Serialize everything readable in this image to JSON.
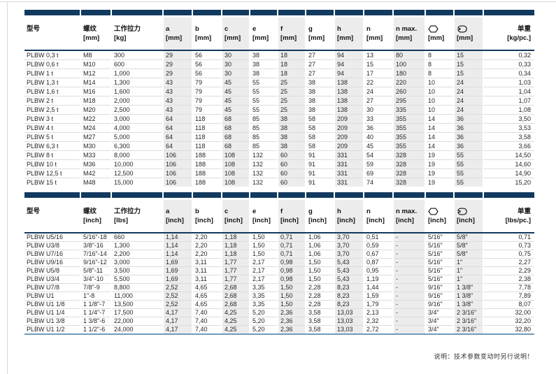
{
  "note": "说明：技术参数变动时另行说明！",
  "colors": {
    "header_bar_navy": "#12395f",
    "column_stripe": "#ececec",
    "table_bottom_rule_blue": "#6f9cbe"
  },
  "tables": [
    {
      "name": "metric",
      "columns": [
        {
          "key": "model",
          "label": "型号",
          "unit": ""
        },
        {
          "key": "thread",
          "label": "螺纹",
          "unit": "[mm]"
        },
        {
          "key": "working-load",
          "label": "工作拉力",
          "unit": "[kg]"
        },
        {
          "key": "a",
          "label": "a",
          "unit": "[mm]"
        },
        {
          "key": "b",
          "label": "b",
          "unit": "[mm]"
        },
        {
          "key": "c",
          "label": "c",
          "unit": "[mm]"
        },
        {
          "key": "e",
          "label": "e",
          "unit": "[mm]"
        },
        {
          "key": "f",
          "label": "f",
          "unit": "[mm]"
        },
        {
          "key": "g",
          "label": "g",
          "unit": "[mm]"
        },
        {
          "key": "h",
          "label": "h",
          "unit": "[mm]"
        },
        {
          "key": "n",
          "label": "n",
          "unit": "[mm]"
        },
        {
          "key": "n-max",
          "label": "n max.",
          "unit": "[mm]"
        },
        {
          "key": "hex-size",
          "icon": "hexagon-icon",
          "unit": "[mm]"
        },
        {
          "key": "wrench-size",
          "icon": "wrench-icon",
          "unit": "[mm]"
        },
        {
          "key": "unit-weight",
          "label": "单重",
          "unit": "[kg/pc.]"
        }
      ],
      "rows": [
        [
          "PLBW 0,3 t",
          "M8",
          "300",
          "29",
          "56",
          "30",
          "38",
          "18",
          "27",
          "94",
          "13",
          "80",
          "8",
          "15",
          "0,32"
        ],
        [
          "PLBW 0,6 t",
          "M10",
          "600",
          "29",
          "56",
          "30",
          "38",
          "18",
          "27",
          "94",
          "15",
          "100",
          "8",
          "15",
          "0,33"
        ],
        [
          "PLBW 1 t",
          "M12",
          "1,000",
          "29",
          "56",
          "30",
          "38",
          "18",
          "27",
          "94",
          "17",
          "180",
          "8",
          "15",
          "0,34"
        ],
        [
          "PLBW 1,3 t",
          "M14",
          "1,300",
          "43",
          "79",
          "45",
          "55",
          "25",
          "38",
          "138",
          "22",
          "220",
          "10",
          "24",
          "1,03"
        ],
        [
          "PLBW 1,6 t",
          "M16",
          "1,600",
          "43",
          "79",
          "45",
          "55",
          "25",
          "38",
          "138",
          "24",
          "260",
          "10",
          "24",
          "1,04"
        ],
        [
          "PLBW 2 t",
          "M18",
          "2,000",
          "43",
          "79",
          "45",
          "55",
          "25",
          "38",
          "138",
          "27",
          "295",
          "10",
          "24",
          "1,07"
        ],
        [
          "PLBW 2,5 t",
          "M20",
          "2,500",
          "43",
          "79",
          "45",
          "55",
          "25",
          "38",
          "138",
          "30",
          "335",
          "10",
          "24",
          "1,08"
        ],
        [
          "PLBW 3 t",
          "M22",
          "3,000",
          "64",
          "118",
          "68",
          "85",
          "38",
          "58",
          "209",
          "33",
          "355",
          "14",
          "36",
          "3,50"
        ],
        [
          "PLBW 4 t",
          "M24",
          "4,000",
          "64",
          "118",
          "68",
          "85",
          "38",
          "58",
          "209",
          "36",
          "355",
          "14",
          "36",
          "3,53"
        ],
        [
          "PLBW 5 t",
          "M27",
          "5,000",
          "64",
          "118",
          "68",
          "85",
          "38",
          "58",
          "209",
          "40",
          "355",
          "14",
          "36",
          "3,58"
        ],
        [
          "PLBW 6,3 t",
          "M30",
          "6,300",
          "64",
          "118",
          "68",
          "85",
          "38",
          "58",
          "209",
          "45",
          "355",
          "14",
          "36",
          "3,66"
        ],
        [
          "PLBW 8 t",
          "M33",
          "8,000",
          "106",
          "188",
          "108",
          "132",
          "60",
          "91",
          "331",
          "54",
          "328",
          "19",
          "55",
          "14,50"
        ],
        [
          "PLBW 10 t",
          "M36",
          "10,000",
          "106",
          "188",
          "108",
          "132",
          "60",
          "91",
          "331",
          "59",
          "328",
          "19",
          "55",
          "14,60"
        ],
        [
          "PLBW 12,5 t",
          "M42",
          "12,500",
          "106",
          "188",
          "108",
          "132",
          "60",
          "91",
          "331",
          "69",
          "328",
          "19",
          "55",
          "14,90"
        ],
        [
          "PLBW 15 t",
          "M48",
          "15,000",
          "106",
          "188",
          "108",
          "132",
          "60",
          "91",
          "331",
          "74",
          "328",
          "19",
          "55",
          "15,20"
        ]
      ]
    },
    {
      "name": "imperial",
      "columns": [
        {
          "key": "model",
          "label": "型号",
          "unit": ""
        },
        {
          "key": "thread",
          "label": "螺纹",
          "unit": "[inch]"
        },
        {
          "key": "working-load",
          "label": "工作拉力",
          "unit": "[lbs]"
        },
        {
          "key": "a",
          "label": "a",
          "unit": "[inch]"
        },
        {
          "key": "b",
          "label": "b",
          "unit": "[inch]"
        },
        {
          "key": "c",
          "label": "c",
          "unit": "[inch]"
        },
        {
          "key": "e",
          "label": "e",
          "unit": "[inch]"
        },
        {
          "key": "f",
          "label": "f",
          "unit": "[inch]"
        },
        {
          "key": "g",
          "label": "g",
          "unit": "[inch]"
        },
        {
          "key": "h",
          "label": "h",
          "unit": "[inch]"
        },
        {
          "key": "n",
          "label": "n",
          "unit": "[inch]"
        },
        {
          "key": "n-max",
          "label": "n max.",
          "unit": "[inch]"
        },
        {
          "key": "hex-size",
          "icon": "hexagon-icon",
          "unit": "[inch]"
        },
        {
          "key": "wrench-size",
          "icon": "wrench-icon",
          "unit": "[inch]"
        },
        {
          "key": "unit-weight",
          "label": "单重",
          "unit": "[lbs/pc.]"
        }
      ],
      "rows": [
        [
          "PLBW U5/16",
          "5/16\"-18",
          "660",
          "1,14",
          "2,20",
          "1,18",
          "1,50",
          "0,71",
          "1,06",
          "3,70",
          "0,51",
          "-",
          "5/16\"",
          "5/8\"",
          "0,71"
        ],
        [
          "PLBW U3/8",
          "3/8\"-16",
          "1,300",
          "1,14",
          "2,20",
          "1,18",
          "1,50",
          "0,71",
          "1,06",
          "3,70",
          "0,59",
          "-",
          "5/16\"",
          "5/8\"",
          "0,73"
        ],
        [
          "PLBW U7/16",
          "7/16\"-14",
          "2,200",
          "1,14",
          "2,20",
          "1,18",
          "1,50",
          "0,71",
          "1,06",
          "3,70",
          "0,67",
          "-",
          "5/16\"",
          "5/8\"",
          "0,75"
        ],
        [
          "PLBW U9/16",
          "9/16\"-12",
          "3,000",
          "1,69",
          "3,11",
          "1,77",
          "2,17",
          "0,98",
          "1,50",
          "5,43",
          "0,87",
          "-",
          "5/16\"",
          "1\"",
          "2,27"
        ],
        [
          "PLBW U5/8",
          "5/8\"-11",
          "3,500",
          "1,69",
          "3,11",
          "1,77",
          "2,17",
          "0,98",
          "1,50",
          "5,43",
          "0,95",
          "-",
          "5/16\"",
          "1\"",
          "2,29"
        ],
        [
          "PLBW U3/4",
          "3/4\"-10",
          "5,500",
          "1,69",
          "3,11",
          "1,77",
          "2,17",
          "0,98",
          "1,50",
          "5,43",
          "1,19",
          "-",
          "5/16\"",
          "1\"",
          "2,38"
        ],
        [
          "PLBW U7/8",
          "7/8\"-9",
          "8,800",
          "2,52",
          "4,65",
          "2,68",
          "3,35",
          "1,50",
          "2,28",
          "8,23",
          "1,44",
          "-",
          "9/16\"",
          "1 3/8\"",
          "7,78"
        ],
        [
          "PLBW U1",
          "1\"-8",
          "11,000",
          "2,52",
          "4,65",
          "2,68",
          "3,35",
          "1,50",
          "2,28",
          "8,23",
          "1,59",
          "-",
          "9/16\"",
          "1 3/8\"",
          "7,89"
        ],
        [
          "PLBW U1 1/8",
          "1 1/8\"-7",
          "13,500",
          "2,52",
          "4,65",
          "2,68",
          "3,35",
          "1,50",
          "2,28",
          "8,23",
          "1,79",
          "-",
          "9/16\"",
          "1 3/8\"",
          "8,07"
        ],
        [
          "PLBW U1 1/4",
          "1 1/4\"-7",
          "17,500",
          "4,17",
          "7,40",
          "4,25",
          "5,20",
          "2,36",
          "3,58",
          "13,03",
          "2,13",
          "-",
          "3/4\"",
          "2 3/16\"",
          "32,00"
        ],
        [
          "PLBW U1 3/8",
          "1 3/8\"-6",
          "22,000",
          "4,17",
          "7,40",
          "4,25",
          "5,20",
          "2,36",
          "3,58",
          "13,03",
          "2,32",
          "-",
          "3/4\"",
          "2 3/16\"",
          "32,20"
        ],
        [
          "PLBW U1 1/2",
          "1 1/2\"-6",
          "24,000",
          "4,17",
          "7,40",
          "4,25",
          "5,20",
          "2,36",
          "3,58",
          "13,03",
          "2,72",
          "-",
          "3/4\"",
          "2 3/16\"",
          "32,80"
        ]
      ]
    }
  ]
}
